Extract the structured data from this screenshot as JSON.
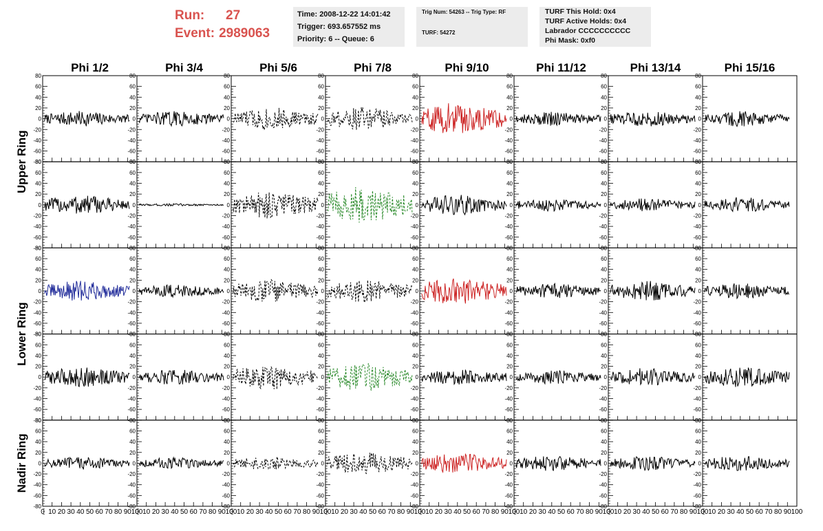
{
  "header": {
    "run_label": "Run:",
    "run_value": "27",
    "event_label": "Event:",
    "event_value": "2989063"
  },
  "time_box": {
    "time": "Time: 2008-12-22 14:01:42",
    "trigger": "Trigger: 693.657552 ms",
    "priority": "Priority: 6 -- Queue: 6"
  },
  "trig_box": {
    "trig": "Trig Num: 54263 -- Trig Type: RF",
    "turf": "TURF: 54272"
  },
  "turf_box": {
    "this_hold": "TURF This Hold: 0x4",
    "active_holds": "TURF Active Holds: 0x4",
    "labrador": "Labrador CCCCCCCCCC",
    "phi_mask": "Phi Mask: 0xf0"
  },
  "colors": {
    "header_red": "#d9534f",
    "trace_default": "#000000",
    "trace_red": "#cc2222",
    "trace_green": "#2a8a2a",
    "trace_blue": "#1f2a99",
    "info_box_bg": "#ececec"
  },
  "chart_data": {
    "type": "line",
    "columns": [
      "Phi 1/2",
      "Phi 3/4",
      "Phi 5/6",
      "Phi 7/8",
      "Phi 9/10",
      "Phi 11/12",
      "Phi 13/14",
      "Phi 15/16"
    ],
    "ring_labels": [
      "Upper Ring",
      "Lower Ring",
      "Nadir Ring"
    ],
    "ring_rows": [
      [
        0,
        1
      ],
      [
        2,
        3
      ],
      [
        4,
        4
      ]
    ],
    "xlim": [
      0,
      100
    ],
    "x_ticks": [
      0,
      10,
      20,
      30,
      40,
      50,
      60,
      70,
      80,
      90,
      100
    ],
    "x_tick_labels": [
      "0",
      "10",
      "20",
      "30",
      "40",
      "50",
      "60",
      "70",
      "80",
      "90",
      "100"
    ],
    "ylim": [
      -80,
      80
    ],
    "y_ticks": [
      -80,
      -60,
      -40,
      -20,
      0,
      20,
      40,
      60,
      80
    ],
    "y_tick_labels": [
      "-80",
      "-60",
      "-40",
      "-20",
      "0",
      "20",
      "40",
      "60",
      "80"
    ],
    "panels": [
      [
        {
          "color": "black",
          "style": "solid",
          "amp": 12
        },
        {
          "color": "black",
          "style": "solid",
          "amp": 12
        },
        {
          "color": "black",
          "style": "dashed",
          "amp": 18
        },
        {
          "color": "black",
          "style": "dashed",
          "amp": 18
        },
        {
          "color": "red",
          "style": "solid",
          "amp": 26
        },
        {
          "color": "black",
          "style": "solid",
          "amp": 11
        },
        {
          "color": "black",
          "style": "solid",
          "amp": 12
        },
        {
          "color": "black",
          "style": "solid",
          "amp": 12
        }
      ],
      [
        {
          "color": "black",
          "style": "solid",
          "amp": 16
        },
        {
          "color": "black",
          "style": "solid",
          "amp": 2
        },
        {
          "color": "black",
          "style": "dashed",
          "amp": 22
        },
        {
          "color": "green",
          "style": "dashed",
          "amp": 30
        },
        {
          "color": "black",
          "style": "solid",
          "amp": 16
        },
        {
          "color": "black",
          "style": "solid",
          "amp": 10
        },
        {
          "color": "black",
          "style": "solid",
          "amp": 10
        },
        {
          "color": "black",
          "style": "solid",
          "amp": 12
        }
      ],
      [
        {
          "color": "blue",
          "style": "solid",
          "amp": 16
        },
        {
          "color": "black",
          "style": "solid",
          "amp": 10
        },
        {
          "color": "black",
          "style": "dashed",
          "amp": 18
        },
        {
          "color": "black",
          "style": "dashed",
          "amp": 18
        },
        {
          "color": "red",
          "style": "solid",
          "amp": 22
        },
        {
          "color": "black",
          "style": "solid",
          "amp": 12
        },
        {
          "color": "black",
          "style": "solid",
          "amp": 16
        },
        {
          "color": "black",
          "style": "solid",
          "amp": 12
        }
      ],
      [
        {
          "color": "black",
          "style": "solid",
          "amp": 16
        },
        {
          "color": "black",
          "style": "solid",
          "amp": 12
        },
        {
          "color": "black",
          "style": "dashed",
          "amp": 20
        },
        {
          "color": "green",
          "style": "dashed",
          "amp": 22
        },
        {
          "color": "black",
          "style": "solid",
          "amp": 12
        },
        {
          "color": "black",
          "style": "solid",
          "amp": 11
        },
        {
          "color": "black",
          "style": "solid",
          "amp": 14
        },
        {
          "color": "black",
          "style": "solid",
          "amp": 16
        }
      ],
      [
        {
          "color": "black",
          "style": "solid",
          "amp": 10
        },
        {
          "color": "black",
          "style": "solid",
          "amp": 9
        },
        {
          "color": "black",
          "style": "dashed",
          "amp": 11
        },
        {
          "color": "black",
          "style": "dashed",
          "amp": 18
        },
        {
          "color": "red",
          "style": "solid",
          "amp": 16
        },
        {
          "color": "black",
          "style": "solid",
          "amp": 12
        },
        {
          "color": "black",
          "style": "solid",
          "amp": 11
        },
        {
          "color": "black",
          "style": "solid",
          "amp": 12
        }
      ]
    ]
  }
}
